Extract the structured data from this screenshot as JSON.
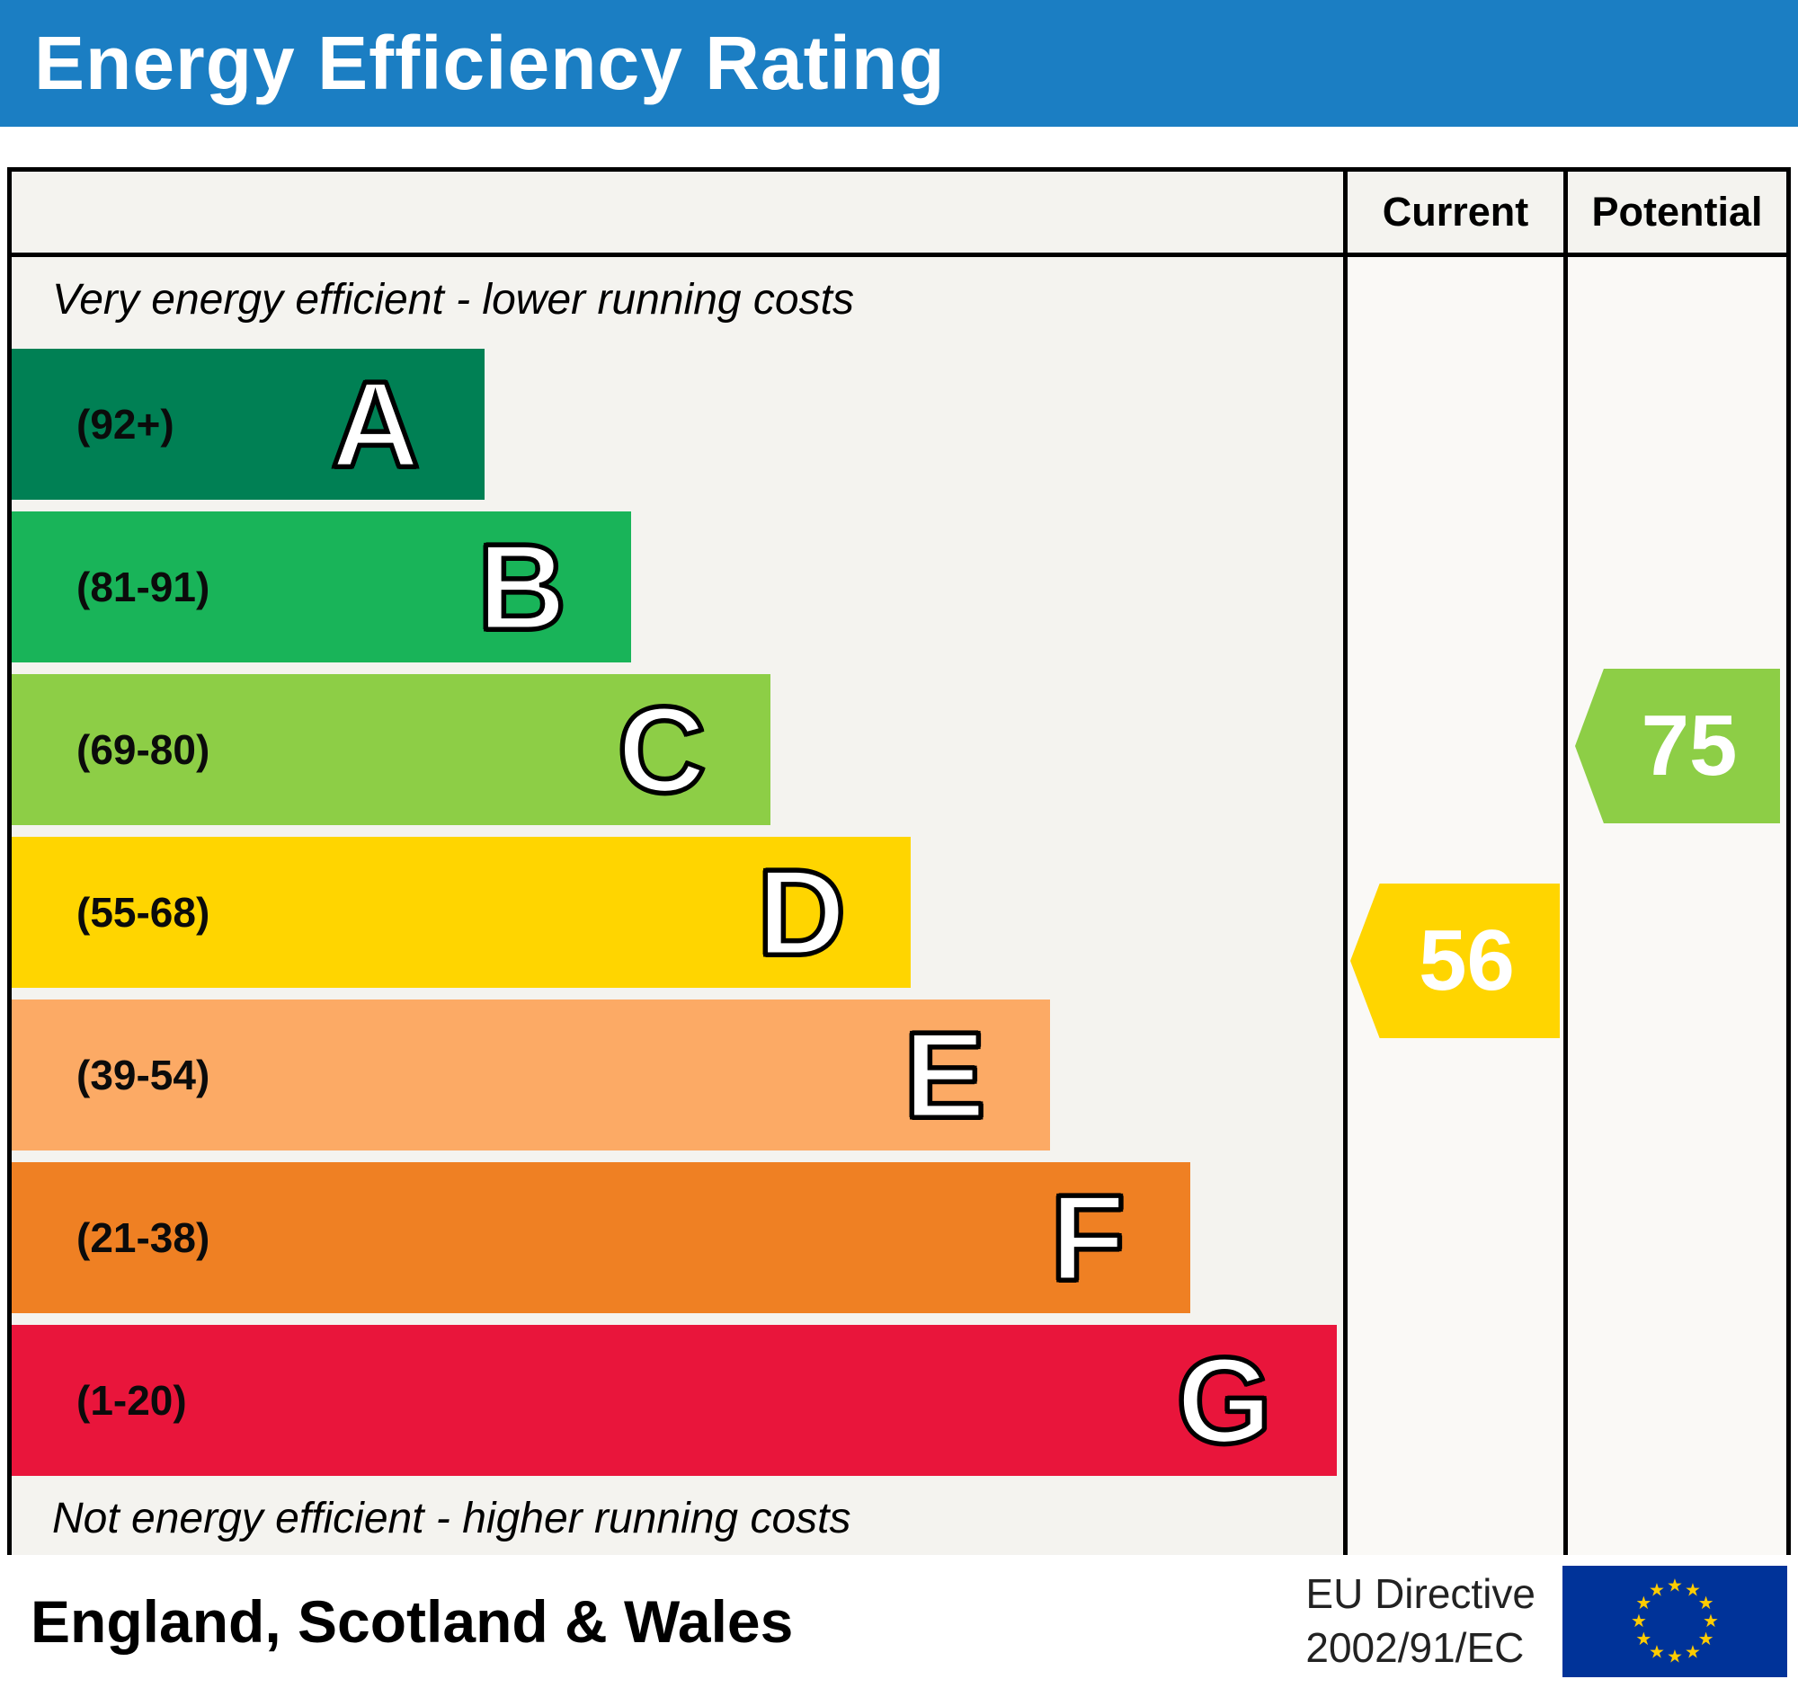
{
  "title": "Energy Efficiency Rating",
  "columns": {
    "current_label": "Current",
    "potential_label": "Potential"
  },
  "notes": {
    "top": "Very energy efficient - lower running costs",
    "bottom": "Not energy efficient - higher running costs"
  },
  "bands": [
    {
      "letter": "A",
      "range_label": "(92+)",
      "color": "#008054",
      "width_pct": 35.5
    },
    {
      "letter": "B",
      "range_label": "(81-91)",
      "color": "#19b459",
      "width_pct": 46.5
    },
    {
      "letter": "C",
      "range_label": "(69-80)",
      "color": "#8dce46",
      "width_pct": 57
    },
    {
      "letter": "D",
      "range_label": "(55-68)",
      "color": "#ffd500",
      "width_pct": 67.5
    },
    {
      "letter": "E",
      "range_label": "(39-54)",
      "color": "#fcaa65",
      "width_pct": 78
    },
    {
      "letter": "F",
      "range_label": "(21-38)",
      "color": "#ef8023",
      "width_pct": 88.5
    },
    {
      "letter": "G",
      "range_label": "(1-20)",
      "color": "#e9153b",
      "width_pct": 99.5
    }
  ],
  "ratings": {
    "current": {
      "value": "56",
      "color": "#ffd500",
      "band": "D"
    },
    "potential": {
      "value": "75",
      "color": "#8dce46",
      "band": "C"
    }
  },
  "footer": {
    "region": "England, Scotland & Wales",
    "directive_line1": "EU Directive",
    "directive_line2": "2002/91/EC"
  },
  "icons": {
    "star": "★"
  },
  "chart_data": {
    "type": "bar",
    "title": "Energy Efficiency Rating",
    "categories": [
      "A",
      "B",
      "C",
      "D",
      "E",
      "F",
      "G"
    ],
    "band_ranges": [
      "92+",
      "81-91",
      "69-80",
      "55-68",
      "39-54",
      "21-38",
      "1-20"
    ],
    "band_colors": [
      "#008054",
      "#19b459",
      "#8dce46",
      "#ffd500",
      "#fcaa65",
      "#ef8023",
      "#e9153b"
    ],
    "bar_relative_widths_pct": [
      35.5,
      46.5,
      57,
      67.5,
      78,
      88.5,
      99.5
    ],
    "scale_min": 1,
    "scale_max": 100,
    "series": [
      {
        "name": "Current",
        "value": 56,
        "band": "D",
        "color": "#ffd500"
      },
      {
        "name": "Potential",
        "value": 75,
        "band": "C",
        "color": "#8dce46"
      }
    ],
    "annotations": [
      "Very energy efficient - lower running costs",
      "Not energy efficient - higher running costs"
    ],
    "region": "England, Scotland & Wales",
    "directive": "EU Directive 2002/91/EC",
    "legend_position": "none",
    "grid": false
  }
}
